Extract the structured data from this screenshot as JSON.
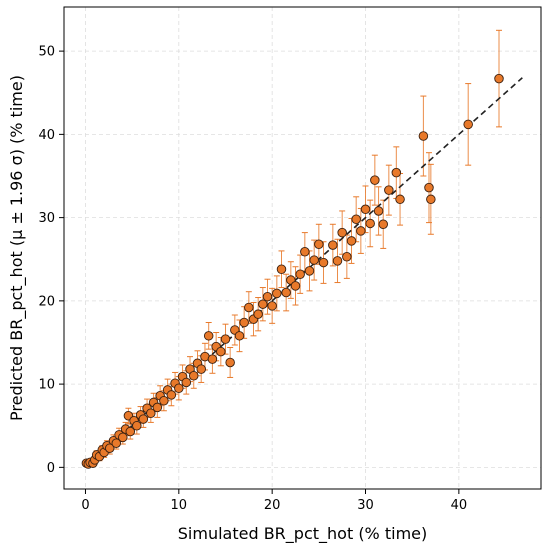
{
  "chart_data": {
    "type": "scatter",
    "title": "",
    "xlabel": "Simulated BR_pct_hot (% time)",
    "ylabel": "Predicted BR_pct_hot (μ ± 1.96 σ) (% time)",
    "xlim": [
      -2.3,
      48.8
    ],
    "ylim": [
      -2.6,
      55.3
    ],
    "xticks": [
      0,
      10,
      20,
      30,
      40
    ],
    "yticks": [
      0,
      10,
      20,
      30,
      40,
      50
    ],
    "grid": true,
    "colors": {
      "marker_fill": "#e8792a",
      "marker_edge": "#3a2010",
      "error_bar": "#e8792a",
      "reference_line": "#222222",
      "grid": "#dddddd"
    },
    "reference_line": {
      "style": "dashed",
      "x": [
        0,
        46.8
      ],
      "y": [
        0,
        46.8
      ]
    },
    "points": [
      {
        "x": 0.1,
        "y": 0.5,
        "err": 0.3
      },
      {
        "x": 0.3,
        "y": 0.4,
        "err": 0.3
      },
      {
        "x": 0.5,
        "y": 0.6,
        "err": 0.3
      },
      {
        "x": 0.8,
        "y": 0.5,
        "err": 0.4
      },
      {
        "x": 1.0,
        "y": 0.9,
        "err": 0.4
      },
      {
        "x": 1.2,
        "y": 1.5,
        "err": 0.5
      },
      {
        "x": 1.5,
        "y": 1.3,
        "err": 0.5
      },
      {
        "x": 1.8,
        "y": 2.1,
        "err": 0.5
      },
      {
        "x": 2.0,
        "y": 1.8,
        "err": 0.6
      },
      {
        "x": 2.3,
        "y": 2.6,
        "err": 0.6
      },
      {
        "x": 2.6,
        "y": 2.3,
        "err": 0.7
      },
      {
        "x": 3.0,
        "y": 3.2,
        "err": 0.7
      },
      {
        "x": 3.3,
        "y": 2.9,
        "err": 0.7
      },
      {
        "x": 3.6,
        "y": 3.9,
        "err": 0.8
      },
      {
        "x": 4.0,
        "y": 3.6,
        "err": 0.8
      },
      {
        "x": 4.3,
        "y": 4.6,
        "err": 0.8
      },
      {
        "x": 4.6,
        "y": 6.2,
        "err": 0.9
      },
      {
        "x": 4.8,
        "y": 4.3,
        "err": 0.9
      },
      {
        "x": 5.2,
        "y": 5.6,
        "err": 0.9
      },
      {
        "x": 5.5,
        "y": 5.0,
        "err": 1.0
      },
      {
        "x": 5.9,
        "y": 6.3,
        "err": 1.0
      },
      {
        "x": 6.2,
        "y": 5.8,
        "err": 1.0
      },
      {
        "x": 6.6,
        "y": 7.1,
        "err": 1.1
      },
      {
        "x": 7.0,
        "y": 6.5,
        "err": 1.1
      },
      {
        "x": 7.3,
        "y": 7.8,
        "err": 1.1
      },
      {
        "x": 7.7,
        "y": 7.2,
        "err": 1.2
      },
      {
        "x": 8.0,
        "y": 8.6,
        "err": 1.2
      },
      {
        "x": 8.4,
        "y": 8.0,
        "err": 1.2
      },
      {
        "x": 8.8,
        "y": 9.3,
        "err": 1.3
      },
      {
        "x": 9.2,
        "y": 8.7,
        "err": 1.3
      },
      {
        "x": 9.6,
        "y": 10.1,
        "err": 1.3
      },
      {
        "x": 10.0,
        "y": 9.5,
        "err": 1.4
      },
      {
        "x": 10.4,
        "y": 10.9,
        "err": 1.4
      },
      {
        "x": 10.8,
        "y": 10.2,
        "err": 1.4
      },
      {
        "x": 11.2,
        "y": 11.8,
        "err": 1.5
      },
      {
        "x": 11.6,
        "y": 11.0,
        "err": 1.5
      },
      {
        "x": 12.0,
        "y": 12.5,
        "err": 1.5
      },
      {
        "x": 12.4,
        "y": 11.8,
        "err": 1.6
      },
      {
        "x": 12.8,
        "y": 13.3,
        "err": 1.6
      },
      {
        "x": 13.2,
        "y": 15.8,
        "err": 1.6
      },
      {
        "x": 13.6,
        "y": 13.0,
        "err": 1.7
      },
      {
        "x": 14.0,
        "y": 14.5,
        "err": 1.7
      },
      {
        "x": 14.5,
        "y": 13.9,
        "err": 1.7
      },
      {
        "x": 15.0,
        "y": 15.4,
        "err": 1.8
      },
      {
        "x": 15.5,
        "y": 12.6,
        "err": 1.8
      },
      {
        "x": 16.0,
        "y": 16.5,
        "err": 1.8
      },
      {
        "x": 16.5,
        "y": 15.8,
        "err": 1.9
      },
      {
        "x": 17.0,
        "y": 17.4,
        "err": 1.9
      },
      {
        "x": 17.5,
        "y": 19.2,
        "err": 1.9
      },
      {
        "x": 18.0,
        "y": 17.8,
        "err": 2.0
      },
      {
        "x": 18.5,
        "y": 18.4,
        "err": 2.0
      },
      {
        "x": 19.0,
        "y": 19.6,
        "err": 2.0
      },
      {
        "x": 19.5,
        "y": 20.5,
        "err": 2.1
      },
      {
        "x": 20.0,
        "y": 19.4,
        "err": 2.1
      },
      {
        "x": 20.5,
        "y": 20.9,
        "err": 2.1
      },
      {
        "x": 21.0,
        "y": 23.8,
        "err": 2.2
      },
      {
        "x": 21.5,
        "y": 21.0,
        "err": 2.2
      },
      {
        "x": 22.0,
        "y": 22.5,
        "err": 2.2
      },
      {
        "x": 22.5,
        "y": 21.8,
        "err": 2.3
      },
      {
        "x": 23.0,
        "y": 23.2,
        "err": 2.3
      },
      {
        "x": 23.5,
        "y": 25.9,
        "err": 2.3
      },
      {
        "x": 24.0,
        "y": 23.6,
        "err": 2.4
      },
      {
        "x": 24.5,
        "y": 24.9,
        "err": 2.4
      },
      {
        "x": 25.0,
        "y": 26.8,
        "err": 2.4
      },
      {
        "x": 25.5,
        "y": 24.6,
        "err": 2.5
      },
      {
        "x": 26.5,
        "y": 26.7,
        "err": 2.5
      },
      {
        "x": 27.0,
        "y": 24.8,
        "err": 2.6
      },
      {
        "x": 27.5,
        "y": 28.2,
        "err": 2.6
      },
      {
        "x": 28.0,
        "y": 25.3,
        "err": 2.6
      },
      {
        "x": 28.5,
        "y": 27.2,
        "err": 2.7
      },
      {
        "x": 29.0,
        "y": 29.8,
        "err": 2.7
      },
      {
        "x": 29.5,
        "y": 28.4,
        "err": 2.7
      },
      {
        "x": 30.0,
        "y": 31.0,
        "err": 2.8
      },
      {
        "x": 30.5,
        "y": 29.3,
        "err": 2.8
      },
      {
        "x": 31.0,
        "y": 34.5,
        "err": 3.0
      },
      {
        "x": 31.4,
        "y": 30.8,
        "err": 2.9
      },
      {
        "x": 31.9,
        "y": 29.2,
        "err": 2.9
      },
      {
        "x": 32.5,
        "y": 33.3,
        "err": 3.0
      },
      {
        "x": 33.3,
        "y": 35.4,
        "err": 3.1
      },
      {
        "x": 33.7,
        "y": 32.2,
        "err": 3.1
      },
      {
        "x": 36.2,
        "y": 39.8,
        "err": 4.8
      },
      {
        "x": 36.8,
        "y": 33.6,
        "err": 4.2
      },
      {
        "x": 37.0,
        "y": 32.2,
        "err": 4.2
      },
      {
        "x": 41.0,
        "y": 41.2,
        "err": 4.9
      },
      {
        "x": 44.3,
        "y": 46.7,
        "err": 5.8
      }
    ]
  }
}
